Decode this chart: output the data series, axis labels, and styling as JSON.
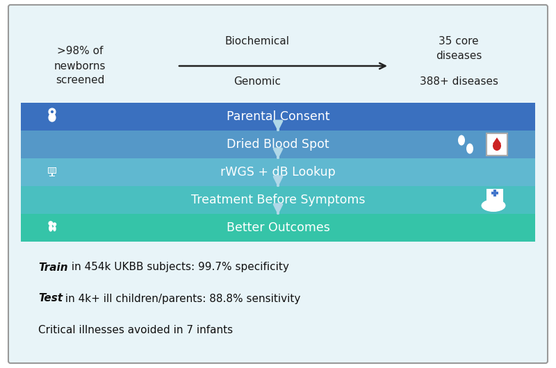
{
  "bg_color": "#e8f4f8",
  "border_color": "#999999",
  "fig_bg": "#ffffff",
  "top_section": {
    "left_text": ">98% of\nnewborns\nscreened",
    "center_top": "Biochemical",
    "center_bottom": "Genomic",
    "right_top": "35 core\ndiseases",
    "right_bottom": "388+ diseases",
    "arrow_color": "#222222"
  },
  "flow_steps": [
    {
      "label": "Parental Consent",
      "color": "#3a70bf",
      "text_color": "#ffffff"
    },
    {
      "label": "Dried Blood Spot",
      "color": "#5598c8",
      "text_color": "#ffffff"
    },
    {
      "label": "rWGS + dB Lookup",
      "color": "#60b8d0",
      "text_color": "#ffffff"
    },
    {
      "label": "Treatment Before Symptoms",
      "color": "#4abfc0",
      "text_color": "#ffffff"
    },
    {
      "label": "Better Outcomes",
      "color": "#35c4a8",
      "text_color": "#ffffff"
    }
  ],
  "flow_arrow_color": "#b0d8e8",
  "bottom_lines": [
    {
      "bold": "Train",
      "rest": " in 454k UKBB subjects: 99.7% specificity"
    },
    {
      "bold": "Test",
      "rest": " in 4k+ ill children/parents: 88.8% sensitivity"
    },
    {
      "bold": "",
      "rest": "Critical illnesses avoided in 7 infants"
    }
  ],
  "font_size_main": 11,
  "font_size_flow": 12.5,
  "font_size_top": 11
}
